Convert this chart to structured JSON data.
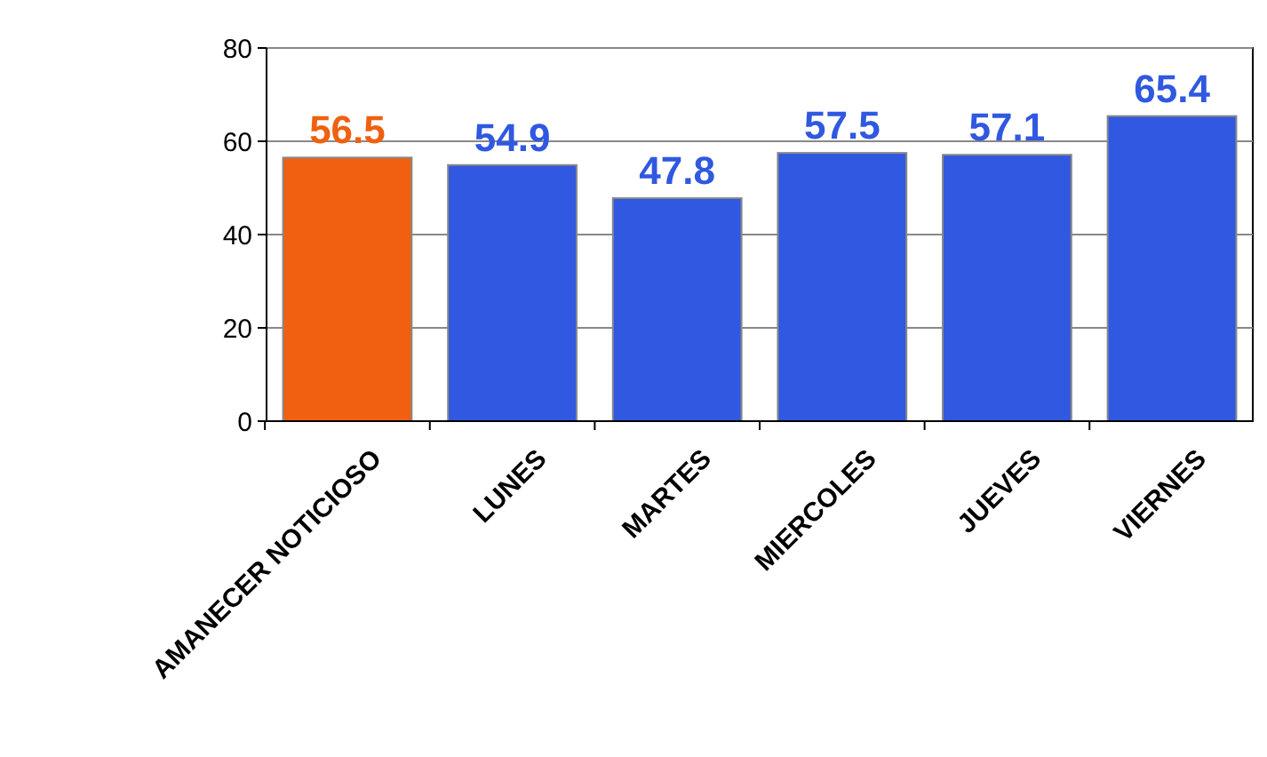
{
  "chart_data": {
    "type": "bar",
    "categories": [
      "AMANECER NOTICIOSO",
      "LUNES",
      "MARTES",
      "MIERCOLES",
      "JUEVES",
      "VIERNES"
    ],
    "values": [
      56.5,
      54.9,
      47.8,
      57.5,
      57.1,
      65.4
    ],
    "colors": [
      "#f06010",
      "#3058e0",
      "#3058e0",
      "#3058e0",
      "#3058e0",
      "#3058e0"
    ],
    "ylim": [
      0,
      80
    ],
    "yticks": [
      0,
      20,
      40,
      60,
      80
    ],
    "grid": "y",
    "data_labels": true
  }
}
